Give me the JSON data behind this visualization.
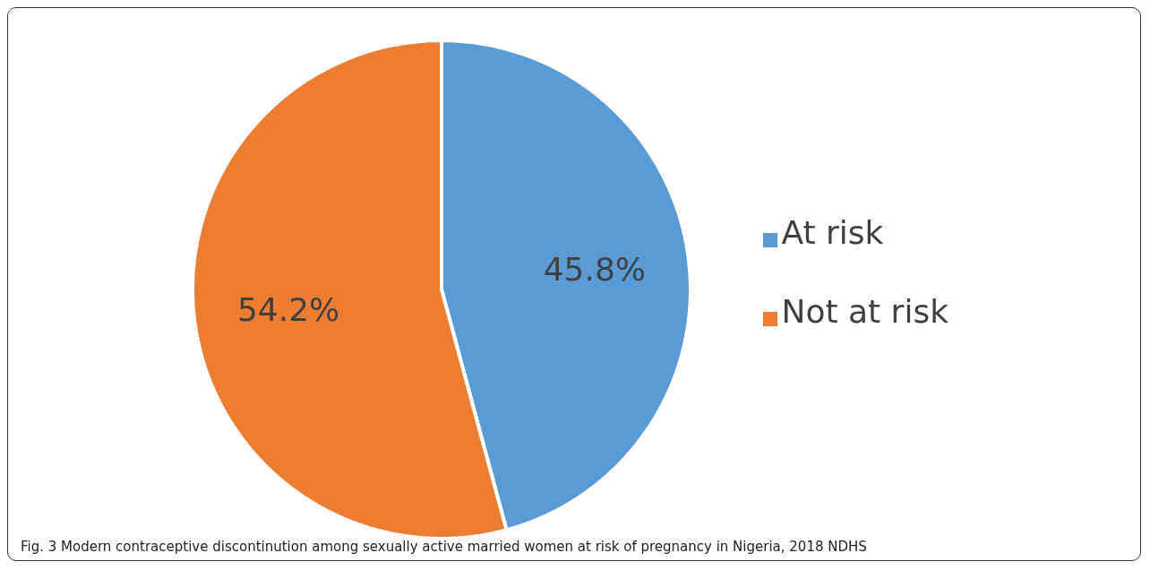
{
  "chart_data": {
    "type": "pie",
    "categories": [
      "At risk",
      "Not at risk"
    ],
    "values": [
      45.8,
      54.2
    ],
    "colors": [
      "#5b9bd5",
      "#ed7d31"
    ],
    "value_labels": [
      "45.8%",
      "54.2%"
    ],
    "legend": "right",
    "annotations": [
      "Fig. 3  Modern contraceptive discontinution among sexually active married women at risk of pregnancy in Nigeria, 2018 NDHS"
    ]
  }
}
